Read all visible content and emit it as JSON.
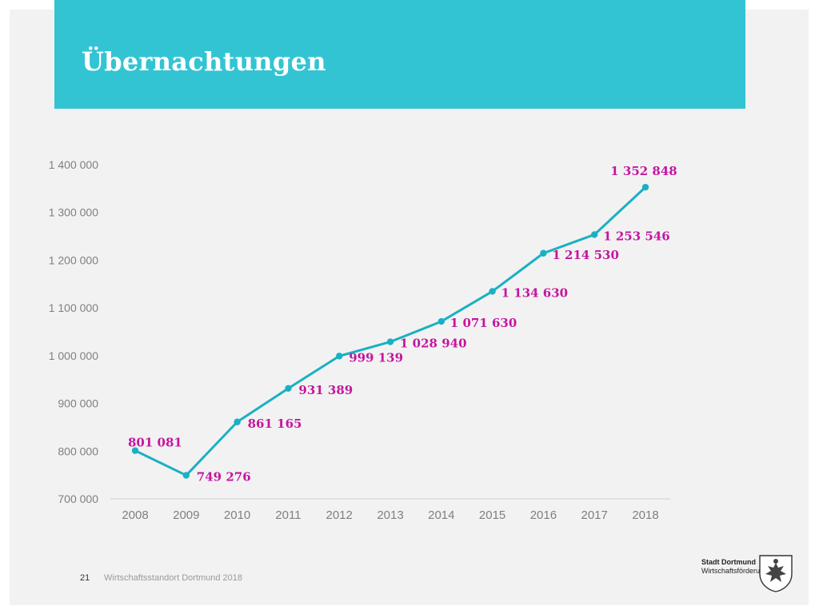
{
  "slide": {
    "title": "Übernachtungen",
    "page_number": "21",
    "footer": "Wirtschaftsstandort Dortmund 2018",
    "logo": {
      "line1": "Stadt Dortmund",
      "line2": "Wirtschaftsförderung"
    }
  },
  "colors": {
    "title_band": "#33c4d3",
    "line": "#1ab0c3",
    "data_label": "#c4169f",
    "tick_label": "#7f7f7f"
  },
  "chart_data": {
    "type": "line",
    "categories": [
      "2008",
      "2009",
      "2010",
      "2011",
      "2012",
      "2013",
      "2014",
      "2015",
      "2016",
      "2017",
      "2018"
    ],
    "values": [
      801081,
      749276,
      861165,
      931389,
      999139,
      1028940,
      1071630,
      1134630,
      1214530,
      1253546,
      1352848
    ],
    "data_labels": [
      "801 081",
      "749 276",
      "861 165",
      "931 389",
      "999 139",
      "1 028 940",
      "1 071 630",
      "1 134 630",
      "1 214 530",
      "1 253 546",
      "1 352 848"
    ],
    "y_ticks": [
      700000,
      800000,
      900000,
      1000000,
      1100000,
      1200000,
      1300000,
      1400000
    ],
    "y_tick_labels": [
      "700 000",
      "800 000",
      "900 000",
      "1 000 000",
      "1 100 000",
      "1 200 000",
      "1 300 000",
      "1 400 000"
    ],
    "ylim": [
      700000,
      1400000
    ],
    "title": "",
    "xlabel": "",
    "ylabel": "",
    "grid": false,
    "legend": "none"
  }
}
